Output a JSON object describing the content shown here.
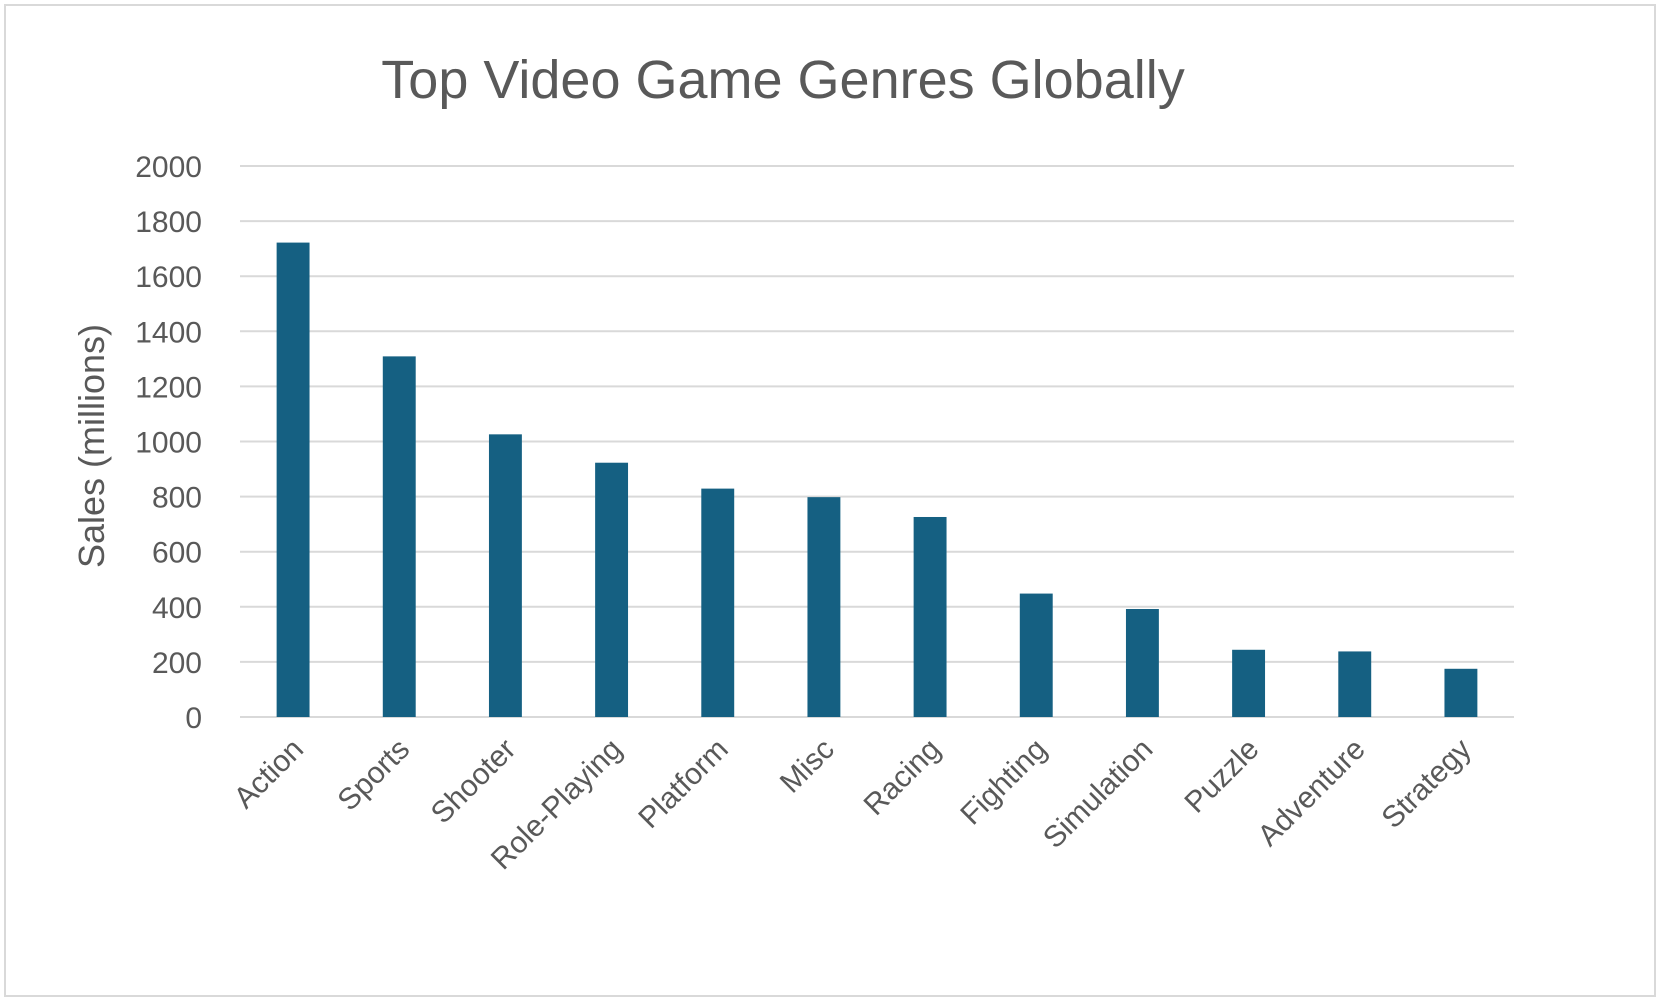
{
  "chart_data": {
    "type": "bar",
    "title": "Top Video Game Genres Globally",
    "xlabel": "",
    "ylabel": "Sales (millions)",
    "ylim": [
      0,
      2000
    ],
    "yticks": [
      0,
      200,
      400,
      600,
      800,
      1000,
      1200,
      1400,
      1600,
      1800,
      2000
    ],
    "grid": true,
    "legend": "none",
    "categories": [
      "Action",
      "Sports",
      "Shooter",
      "Role-Playing",
      "Platform",
      "Misc",
      "Racing",
      "Fighting",
      "Simulation",
      "Puzzle",
      "Adventure",
      "Strategy"
    ],
    "values": [
      1722,
      1309,
      1026,
      923,
      829,
      798,
      726,
      448,
      392,
      244,
      238,
      175
    ],
    "colors": {
      "bar": "#156082",
      "grid": "#d9d9d9",
      "text": "#595959"
    }
  }
}
